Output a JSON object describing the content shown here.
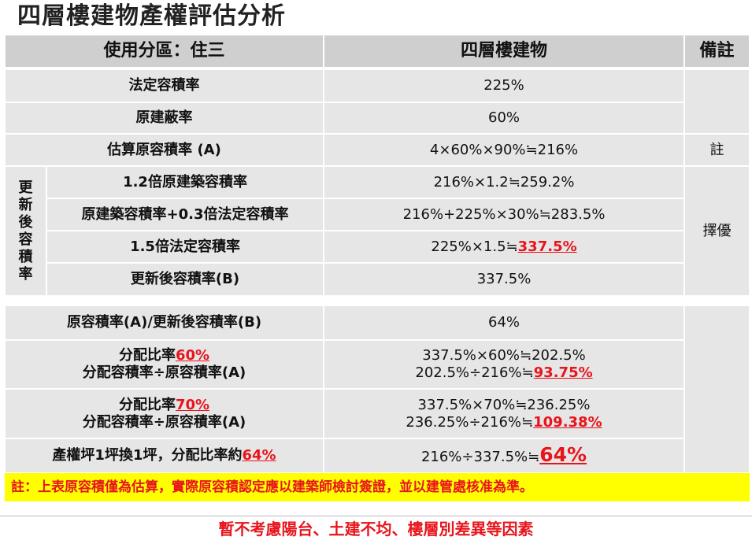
{
  "title": "四層樓建物產權評估分析",
  "header": {
    "zone": "使用分區：住三",
    "building": "四層樓建物",
    "remark": "備註"
  },
  "rows": {
    "legal_far": {
      "label": "法定容積率",
      "value": "225%"
    },
    "coverage": {
      "label": "原建蔽率",
      "value": "60%"
    },
    "est_far": {
      "label": "估算原容積率 (A)",
      "value": "4×60%×90%≒216%",
      "remark": "註"
    },
    "renewal_group_label": [
      "更",
      "新",
      "後",
      "容",
      "積",
      "率"
    ],
    "opt1": {
      "label": "1.2倍原建築容積率",
      "value": "216%×1.2≒259.2%"
    },
    "opt2": {
      "label": "原建築容積率+0.3倍法定容積率",
      "value": "216%+225%×30%≒283.5%"
    },
    "opt3": {
      "label": "1.5倍法定容積率",
      "value_prefix": "225%×1.5≒",
      "value_highlight": "337.5%"
    },
    "renewal_far": {
      "label": "更新後容積率(B)",
      "value": "337.5%"
    },
    "optimal_remark": "擇優",
    "ratio_ab": {
      "label": "原容積率(A)/更新後容積率(B)",
      "value": "64%"
    },
    "alloc60": {
      "label_line1_prefix": "分配比率",
      "label_line1_highlight": "60%",
      "label_line2": "分配容積率÷原容積率(A)",
      "value_line1": "337.5%×60%≒202.5%",
      "value_line2_prefix": "202.5%÷216%≒",
      "value_line2_highlight": "93.75%"
    },
    "alloc70": {
      "label_line1_prefix": "分配比率",
      "label_line1_highlight": "70%",
      "label_line2": "分配容積率÷原容積率(A)",
      "value_line1": "337.5%×70%≒236.25%",
      "value_line2_prefix": "236.25%÷216%≒",
      "value_line2_highlight": "109.38%"
    },
    "exchange": {
      "label_prefix": "產權坪1坪換1坪，分配比率約",
      "label_highlight": "64%",
      "value_prefix": "216%÷337.5%≒",
      "value_highlight": "64%"
    }
  },
  "note": "註：上表原容積僅為估算，實際原容積認定應以建築師檢討簽證，並以建管處核准為準。",
  "footer": "暫不考慮陽台、土建不均、樓層別差異等因素",
  "colors": {
    "header_bg": "#cfcfcf",
    "cell_bg": "#e6e6e6",
    "highlight_red": "#e8141c",
    "note_bg": "#ffff00"
  }
}
